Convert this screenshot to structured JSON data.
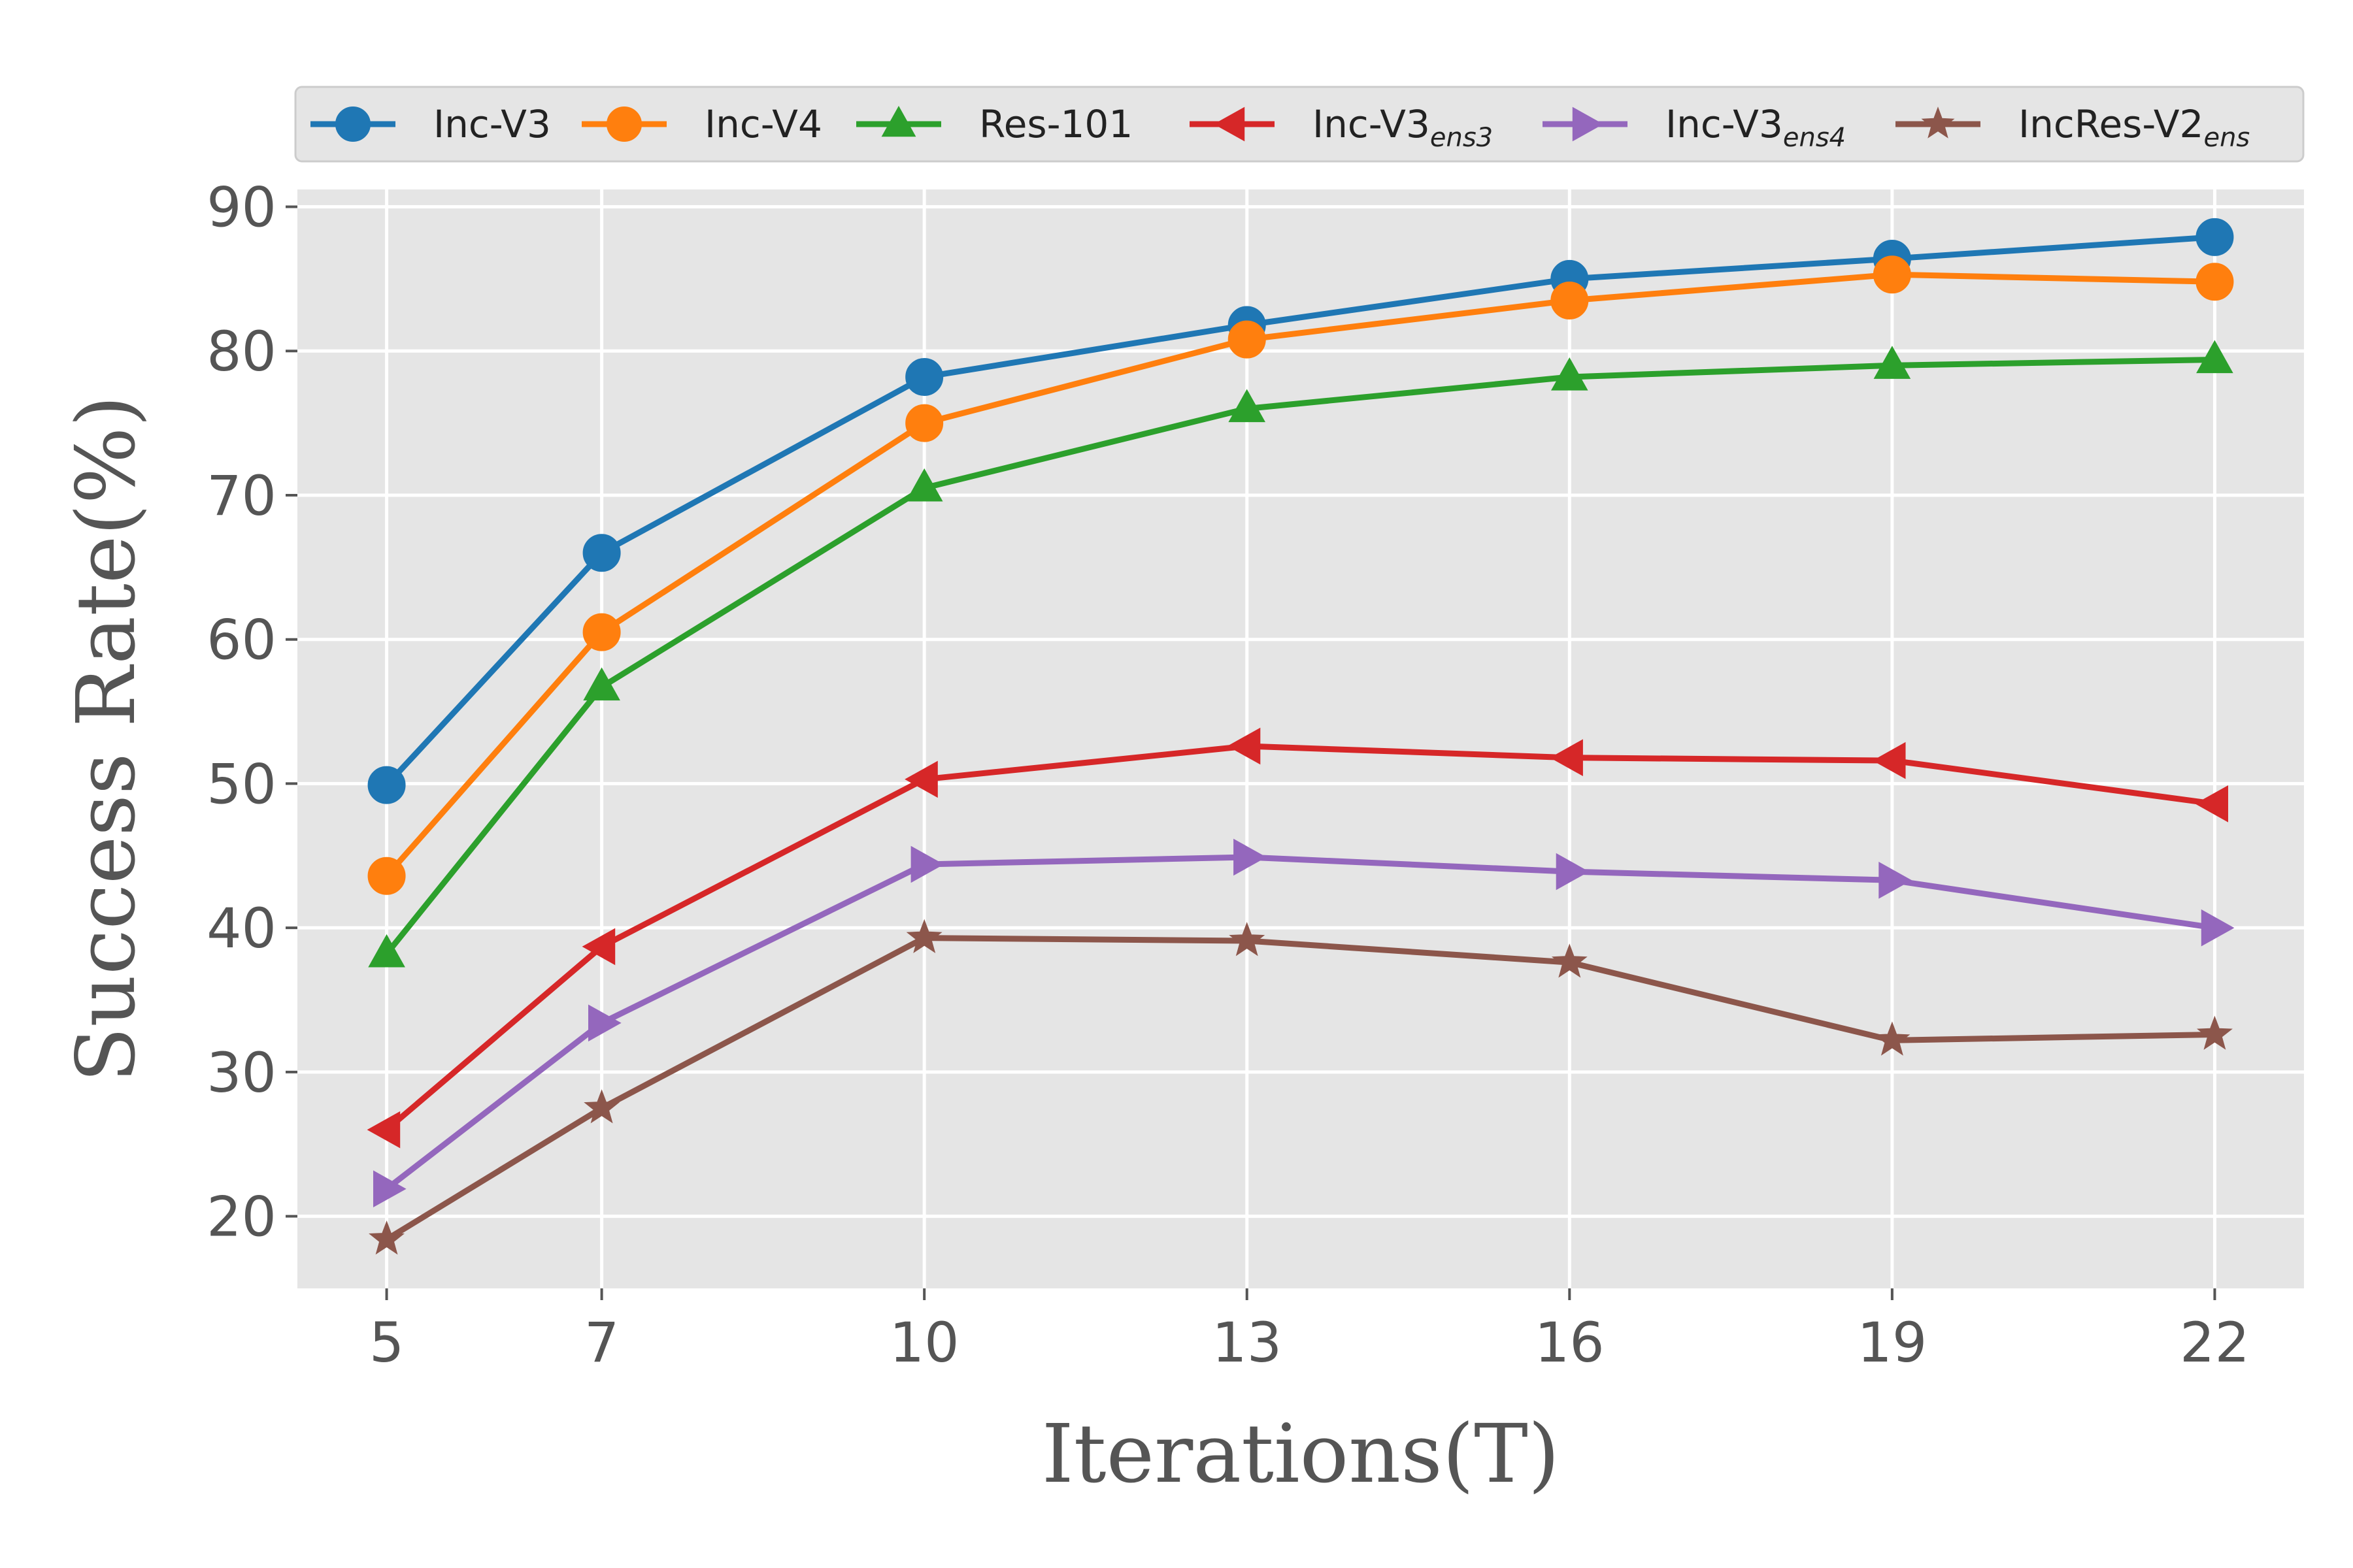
{
  "chart_data": {
    "type": "line",
    "title": "",
    "xlabel": "Iterations(T)",
    "ylabel": "Success Rate(%)",
    "x": [
      5,
      7,
      10,
      13,
      16,
      19,
      22
    ],
    "xticks": [
      "5",
      "7",
      "10",
      "13",
      "16",
      "19",
      "22"
    ],
    "yticks": [
      "20",
      "30",
      "40",
      "50",
      "60",
      "70",
      "80",
      "90"
    ],
    "xlim": [
      4.17,
      22.83
    ],
    "ylim": [
      15,
      91.2
    ],
    "grid": true,
    "legend_position": "top",
    "series": [
      {
        "name": "Inc-V3",
        "sub": "",
        "color": "#1f77b4",
        "marker": "circle",
        "values": [
          49.9,
          66.0,
          78.2,
          81.8,
          85.0,
          86.4,
          87.9
        ]
      },
      {
        "name": "Inc-V4",
        "sub": "",
        "color": "#ff7f0e",
        "marker": "circle",
        "values": [
          43.6,
          60.5,
          75.0,
          80.8,
          83.5,
          85.3,
          84.8
        ]
      },
      {
        "name": "Res-101",
        "sub": "",
        "color": "#2ca02c",
        "marker": "triangle-up",
        "values": [
          38.2,
          56.7,
          70.5,
          76.0,
          78.2,
          79.0,
          79.4
        ]
      },
      {
        "name": "Inc-V3",
        "sub": "ens3",
        "color": "#d62728",
        "marker": "triangle-left",
        "values": [
          26.0,
          38.7,
          50.3,
          52.6,
          51.8,
          51.6,
          48.6
        ]
      },
      {
        "name": "Inc-V3",
        "sub": "ens4",
        "color": "#9467bd",
        "marker": "triangle-right",
        "values": [
          21.9,
          33.4,
          44.4,
          44.9,
          43.9,
          43.3,
          40.0
        ]
      },
      {
        "name": "IncRes-V2",
        "sub": "ens",
        "color": "#8c564b",
        "marker": "star",
        "values": [
          18.4,
          27.5,
          39.3,
          39.1,
          37.6,
          32.2,
          32.6
        ]
      }
    ]
  }
}
